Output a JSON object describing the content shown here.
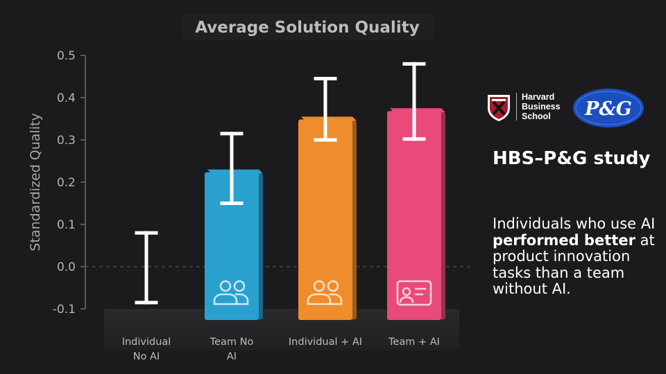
{
  "chart_data": {
    "type": "bar",
    "title": "Average Solution Quality",
    "ylabel": "Standardized Quality",
    "xlabel": "",
    "ylim": [
      -0.1,
      0.5
    ],
    "yticks": [
      "0.5",
      "0.4",
      "0.3",
      "0.2",
      "0.1",
      "0.0",
      "-0.1"
    ],
    "ytick_values": [
      0.5,
      0.4,
      0.3,
      0.2,
      0.1,
      0.0,
      -0.1
    ],
    "baseline": 0.0,
    "categories": [
      {
        "label_lines": [
          "Individual",
          "No AI"
        ],
        "value": 0.0,
        "err_low": -0.085,
        "err_high": 0.08,
        "color": null,
        "icon": null
      },
      {
        "label_lines": [
          "Team No",
          "AI"
        ],
        "value": 0.23,
        "err_low": 0.15,
        "err_high": 0.315,
        "color": "#2aa0cf",
        "icon": "people-icon"
      },
      {
        "label_lines": [
          "Individual + AI"
        ],
        "value": 0.355,
        "err_low": 0.3,
        "err_high": 0.445,
        "color": "#ef8c2b",
        "icon": "people-icon"
      },
      {
        "label_lines": [
          "Team + AI"
        ],
        "value": 0.375,
        "err_low": 0.302,
        "err_high": 0.48,
        "color": "#e84a7a",
        "icon": "ai-screen-icon"
      }
    ],
    "grid": false
  },
  "logos": {
    "hbs": {
      "lines": [
        "Harvard",
        "Business",
        "School"
      ],
      "color": "#a51c30"
    },
    "pg": {
      "text": "P&G",
      "color": "#1b4fbf"
    }
  },
  "study": {
    "title": "HBS–P&G study",
    "text_before": "Individuals who use AI ",
    "text_bold": "performed better",
    "text_after": " at product innovation tasks than a team without AI."
  }
}
